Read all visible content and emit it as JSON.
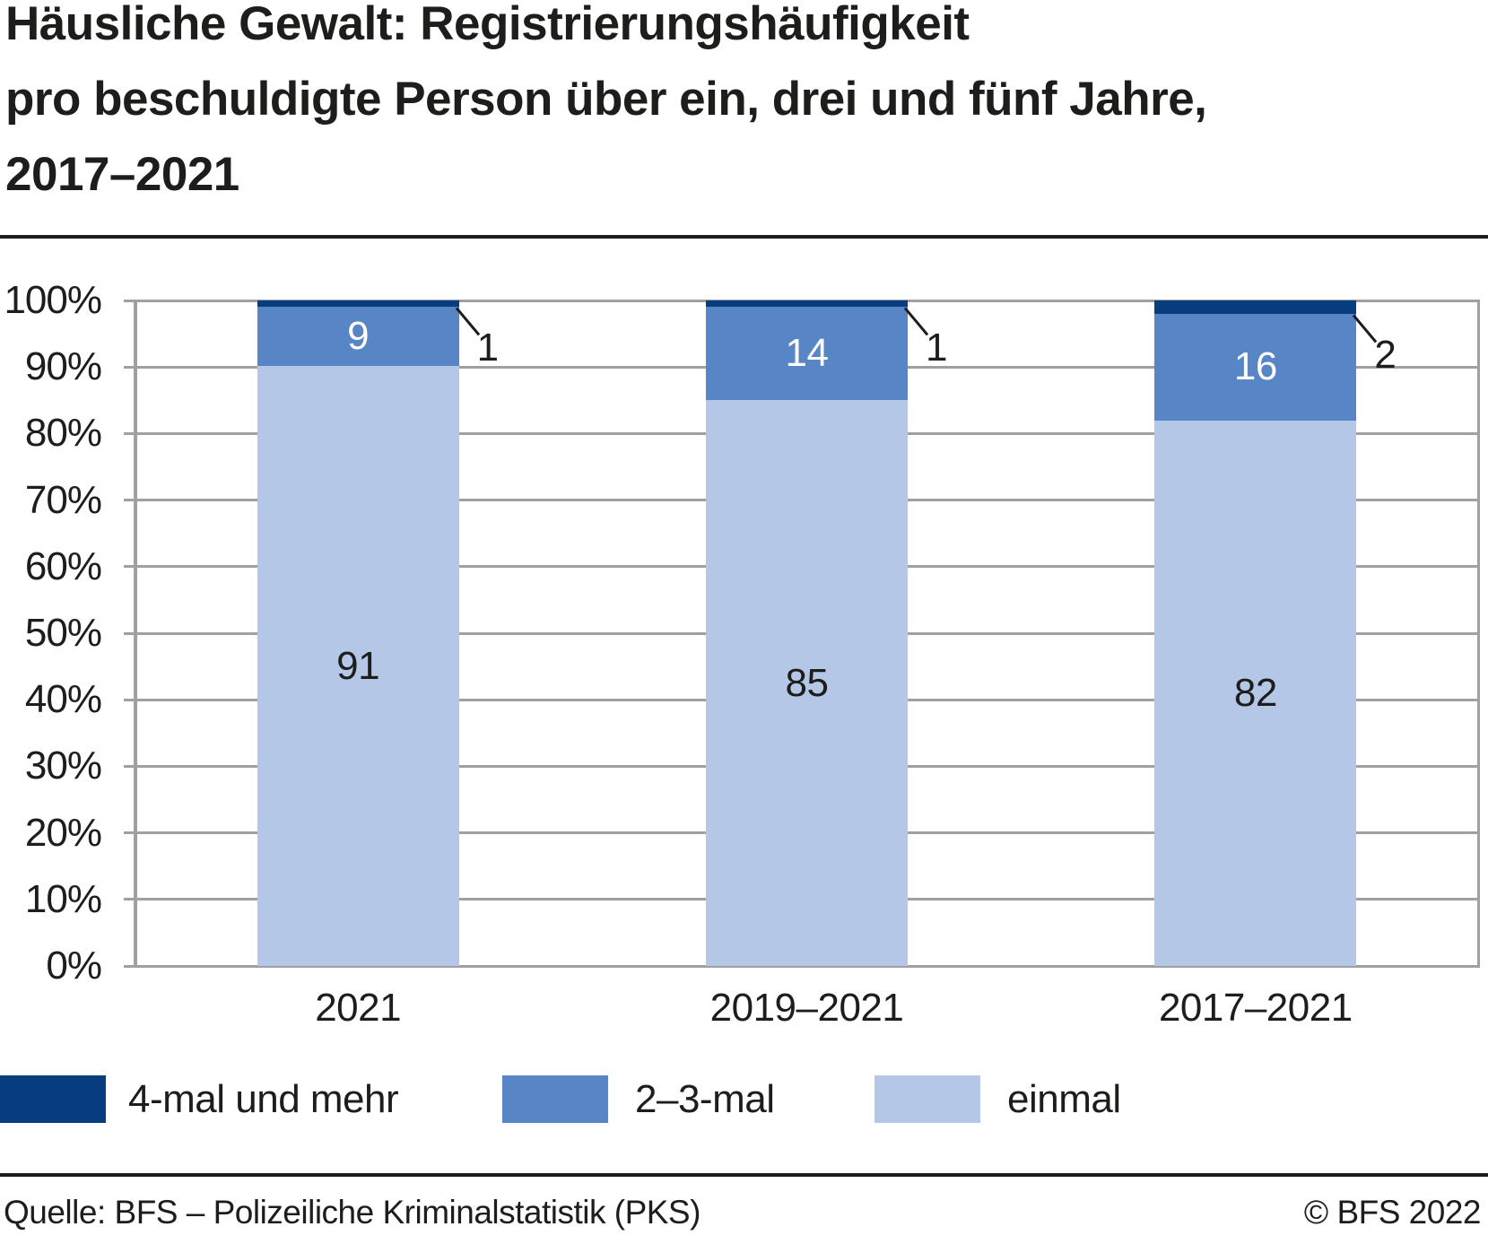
{
  "title": {
    "lines": [
      "Häusliche Gewalt: Registrierungshäufigkeit",
      "pro beschuldigte Person über ein, drei und fünf Jahre,",
      "2017–2021"
    ]
  },
  "chart_data": {
    "type": "bar",
    "subtype": "stacked-percent-column",
    "categories": [
      "2021",
      "2019–2021",
      "2017–2021"
    ],
    "series": [
      {
        "name": "einmal",
        "color": "#b4c7e7",
        "values": [
          91,
          85,
          82
        ],
        "label_color": "#1d1d1b",
        "label_placement": "inside"
      },
      {
        "name": "2–3-mal",
        "color": "#5885c5",
        "values": [
          9,
          14,
          16
        ],
        "label_color": "#ffffff",
        "label_placement": "inside"
      },
      {
        "name": "4-mal und mehr",
        "color": "#083e80",
        "values": [
          1,
          1,
          2
        ],
        "label_color": "#1d1d1b",
        "label_placement": "callout-right"
      }
    ],
    "stack_order_bottom_to_top": [
      "einmal",
      "2–3-mal",
      "4-mal und mehr"
    ],
    "ylim": [
      0,
      100
    ],
    "yticks": [
      "100%",
      "90%",
      "80%",
      "70%",
      "60%",
      "50%",
      "40%",
      "30%",
      "20%",
      "10%",
      "0%"
    ],
    "grid": "horizontal",
    "legend": {
      "position": "bottom-left",
      "order": [
        "4-mal und mehr",
        "2–3-mal",
        "einmal"
      ]
    },
    "colors": {
      "grid": "#a0a0a0",
      "text": "#1d1d1b",
      "background": "#ffffff"
    }
  },
  "footer": {
    "source": "Quelle: BFS – Polizeiliche Kriminalstatistik (PKS)",
    "copyright": "© BFS 2022"
  }
}
